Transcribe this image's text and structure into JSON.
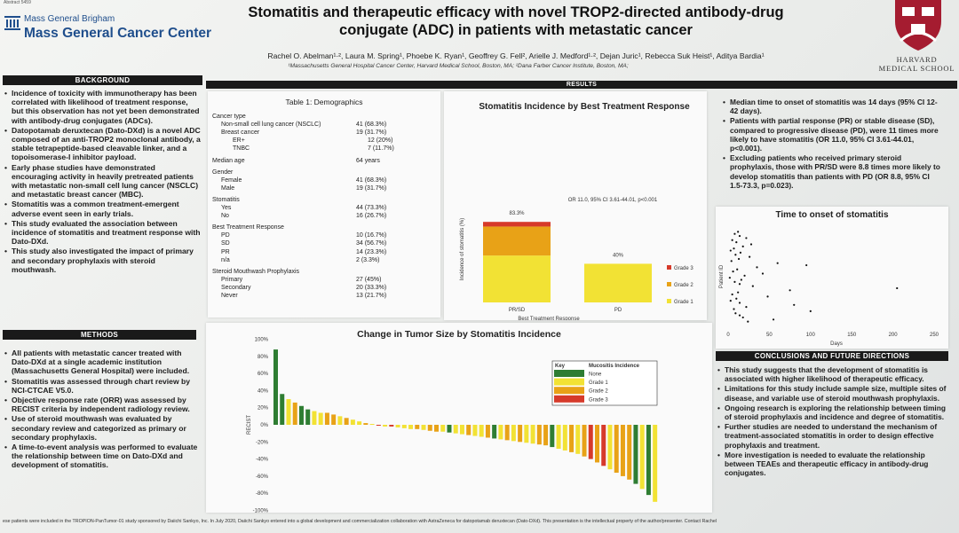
{
  "abstract_no": "Abstract 5459",
  "mgb": {
    "line1": "Mass General Brigham",
    "line2": "Mass General Cancer Center"
  },
  "harvard": {
    "line1": "HARVARD",
    "line2": "MEDICAL SCHOOL"
  },
  "title": {
    "line1": "Stomatitis and therapeutic efficacy with novel TROP2-directed antibody-drug",
    "line2": "conjugate (ADC) in patients with metastatic cancer"
  },
  "authors": "Rachel O. Abelman¹·², Laura M. Spring¹, Phoebe K. Ryan¹, Geoffrey G. Fell², Arielle J. Medford¹·², Dejan Juric¹, Rebecca Suk Heist¹, Aditya Bardia¹",
  "affiliations": "¹Massachusetts General Hospital Cancer Center, Harvard Medical School, Boston, MA; ²Dana Farber Cancer Institute, Boston, MA;",
  "background": {
    "header": "BACKGROUND",
    "bullets": [
      "Incidence of toxicity with immunotherapy has been correlated with likelihood of treatment response, but this observation has not yet been demonstrated with antibody-drug conjugates (ADCs).",
      "Datopotamab deruxtecan (Dato-DXd) is a novel ADC composed of an anti-TROP2 monoclonal antibody, a stable tetrapeptide-based cleavable linker, and a topoisomerase-I inhibitor payload.",
      "Early phase studies have demonstrated encouraging activity in heavily pretreated patients with metastatic non-small cell lung cancer (NSCLC) and metastatic breast cancer (MBC).",
      "Stomatitis was a common treatment-emergent adverse event seen in early trials.",
      "This study evaluated the association between incidence of stomatitis and treatment response with Dato-DXd.",
      "This study also investigated the impact of primary and secondary prophylaxis with steroid mouthwash."
    ]
  },
  "methods": {
    "header": "METHODS",
    "bullets": [
      "All patients with metastatic cancer treated with Dato-DXd at a single academic institution (Massachusetts General Hospital) were included.",
      "Stomatitis was assessed through chart review by NCI-CTCAE V5.0.",
      "Objective response rate (ORR) was assessed by RECIST criteria by independent radiology review.",
      "Use of steroid mouthwash was evaluated by secondary review and categorized as primary or secondary prophylaxis.",
      "A time-to-event analysis was performed to evaluate the relationship between time on Dato-DXd and development of stomatitis."
    ]
  },
  "results_header": "RESULTS",
  "table1": {
    "title": "Table 1: Demographics",
    "rows": [
      {
        "label": "Cancer type",
        "value": ""
      },
      {
        "label": "Non-small cell lung cancer (NSCLC)",
        "value": "41 (68.3%)"
      },
      {
        "label": "Breast cancer",
        "value": "19 (31.7%)"
      },
      {
        "label": "ER+",
        "value": "12 (20%)"
      },
      {
        "label": "TNBC",
        "value": "7 (11.7%)"
      },
      {
        "label": "Median age",
        "value": "64 years"
      },
      {
        "label": "Gender",
        "value": ""
      },
      {
        "label": "Female",
        "value": "41 (68.3%)"
      },
      {
        "label": "Male",
        "value": "19 (31.7%)"
      },
      {
        "label": "Stomatitis",
        "value": ""
      },
      {
        "label": "Yes",
        "value": "44 (73.3%)"
      },
      {
        "label": "No",
        "value": "16 (26.7%)"
      },
      {
        "label": "Best Treatment Response",
        "value": ""
      },
      {
        "label": "PD",
        "value": "10 (16.7%)"
      },
      {
        "label": "SD",
        "value": "34 (56.7%)"
      },
      {
        "label": "PR",
        "value": "14 (23.3%)"
      },
      {
        "label": "n/a",
        "value": "2 (3.3%)"
      },
      {
        "label": "Steroid Mouthwash Prophylaxis",
        "value": ""
      },
      {
        "label": "Primary",
        "value": "27 (45%)"
      },
      {
        "label": "Secondary",
        "value": "20 (33.3%)"
      },
      {
        "label": "Never",
        "value": "13 (21.7%)"
      }
    ]
  },
  "right_bullets": [
    "Median time to onset of stomatitis was 14 days (95% CI 12-42 days).",
    "Patients with partial response (PR) or stable disease (SD), compared to progressive disease (PD), were 11 times more likely to have stomatitis (OR 11.0, 95% CI 3.61-44.01, p<0.001).",
    "Excluding patients who received primary steroid prophylaxis, those with PR/SD were 8.8 times more likely to develop stomatitis than patients with PD (OR 8.8, 95% CI 1.5-73.3, p=0.023)."
  ],
  "conclusions": {
    "header": "CONCLUSIONS AND FUTURE DIRECTIONS",
    "bullets": [
      "This study suggests that the development of stomatitis is associated with higher likelihood of therapeutic efficacy.",
      "Limitations for this study include sample size, multiple sites of disease, and variable use of steroid mouthwash prophylaxis.",
      "Ongoing research is exploring the relationship between timing of steroid prophylaxis and incidence and degree of stomatitis.",
      "Further studies are needed to understand the mechanism of treatment-associated stomatitis in order to design effective prophylaxis and treatment.",
      "More investigation is needed to evaluate the relationship between TEAEs and therapeutic efficacy in antibody-drug conjugates."
    ]
  },
  "footnote": "ese patients were included in the TROPION-PanTumor-01 study sponsored by Daiichi Sankyo, Inc. In July 2020, Daiichi Sankyo entered into a global development and commercialization collaboration with AstraZeneca for datopotamab deruxtecan (Dato-DXd). This presentation is the intellectual property of the author/presenter. Contact Rachel",
  "colors": {
    "grade1": "#f2e234",
    "grade2": "#e8a217",
    "grade3": "#d63a2a",
    "none": "#2e7d32"
  },
  "chart_data": [
    {
      "type": "bar",
      "title": "Stomatitis Incidence by Best Treatment Response",
      "xlabel": "Best Treatment Response",
      "ylabel": "Incidence of stomatitis (%)",
      "categories": [
        "PR/SD",
        "PD"
      ],
      "series": [
        {
          "name": "Grade 1",
          "values": [
            48.5,
            40
          ]
        },
        {
          "name": "Grade 2",
          "values": [
            30,
            0
          ]
        },
        {
          "name": "Grade 3",
          "values": [
            4.8,
            0
          ]
        }
      ],
      "total_labels": [
        "83.3%",
        "40%"
      ],
      "annotation": "OR 11.0, 95% CI 3.61-44.01, p<0.001",
      "ylim": [
        0,
        100
      ],
      "legend": "right",
      "stacked": true
    },
    {
      "type": "scatter",
      "title": "Time to onset of stomatitis",
      "xlabel": "Days",
      "ylabel": "Patient ID",
      "xlim": [
        0,
        250
      ],
      "xticks": [
        "0",
        "50",
        "100",
        "150",
        "200",
        "250"
      ],
      "x": [
        12,
        8,
        14,
        22,
        5,
        10,
        28,
        18,
        7,
        3,
        15,
        9,
        26,
        13,
        4,
        60,
        95,
        35,
        11,
        6,
        42,
        20,
        2,
        16,
        8,
        14,
        30,
        205,
        75,
        12,
        5,
        48,
        10,
        3,
        14,
        80,
        22,
        7,
        100,
        9,
        14,
        18,
        55,
        24
      ],
      "y": [
        44,
        43,
        42,
        41,
        40,
        39,
        38,
        37,
        36,
        35,
        34,
        33,
        32,
        31,
        30,
        29,
        28,
        27,
        26,
        25,
        24,
        23,
        22,
        21,
        20,
        19,
        18,
        17,
        16,
        15,
        14,
        13,
        12,
        11,
        10,
        9,
        8,
        7,
        6,
        5,
        4,
        3,
        2,
        1
      ]
    },
    {
      "type": "bar",
      "title": "Change in Tumor Size by Stomatitis Incidence",
      "ylabel": "RECIST",
      "yticks": [
        "100%",
        "80%",
        "60%",
        "40%",
        "20%",
        "0%",
        "-20%",
        "-40%",
        "-60%",
        "-80%",
        "-100%"
      ],
      "ylim": [
        -100,
        100
      ],
      "legend": {
        "title_key": "Key",
        "title_label": "Mucositis Incidence",
        "entries": [
          "None",
          "Grade 1",
          "Grade 2",
          "Grade 3"
        ]
      },
      "values": [
        88,
        36,
        30,
        26,
        22,
        18,
        16,
        14,
        14,
        12,
        10,
        8,
        6,
        4,
        2,
        1,
        -1,
        -2,
        -2,
        -3,
        -4,
        -5,
        -5,
        -6,
        -7,
        -8,
        -8,
        -9,
        -10,
        -11,
        -12,
        -13,
        -14,
        -15,
        -16,
        -17,
        -18,
        -19,
        -20,
        -21,
        -22,
        -23,
        -24,
        -26,
        -28,
        -30,
        -32,
        -34,
        -37,
        -40,
        -44,
        -48,
        -52,
        -56,
        -60,
        -64,
        -69,
        -75,
        -82,
        -90
      ],
      "grades": [
        0,
        0,
        1,
        2,
        0,
        0,
        1,
        1,
        2,
        2,
        1,
        2,
        1,
        1,
        2,
        1,
        3,
        1,
        3,
        1,
        1,
        1,
        2,
        1,
        2,
        2,
        1,
        0,
        1,
        1,
        2,
        1,
        1,
        2,
        0,
        1,
        2,
        1,
        2,
        1,
        1,
        2,
        2,
        0,
        1,
        1,
        2,
        1,
        2,
        3,
        2,
        3,
        1,
        2,
        2,
        2,
        0,
        1,
        0,
        1
      ]
    }
  ]
}
